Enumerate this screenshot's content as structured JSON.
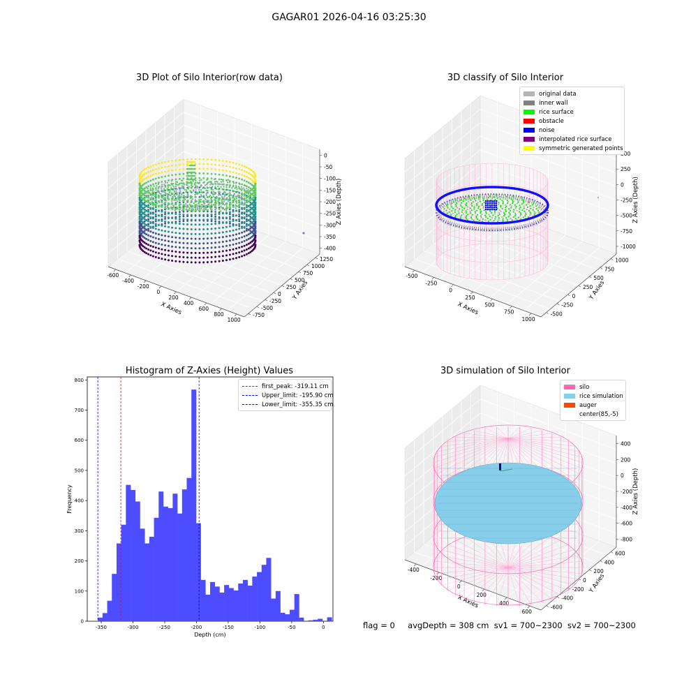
{
  "suptitle": "GAGAR01 2026-04-16 03:25:30",
  "panels": {
    "raw": {
      "title": "3D Plot of Silo Interior(row data)",
      "xlabel": "X Axies",
      "ylabel": "Y Axies",
      "zlabel": "Z Axies (Depth)",
      "xticks": [
        "-600",
        "-400",
        "-200",
        "0",
        "200",
        "400",
        "600",
        "800",
        "1000"
      ],
      "yticks": [
        "-750",
        "-500",
        "-250",
        "0",
        "250",
        "500",
        "750",
        "1000",
        "1250"
      ],
      "zticks": [
        "0",
        "-50",
        "-100",
        "-150",
        "-200",
        "-250",
        "-300",
        "-350",
        "-400"
      ]
    },
    "classify": {
      "title": "3D classify of Silo Interior",
      "xlabel": "X Axies",
      "ylabel": "Y Axies",
      "zlabel": "Z Axies (Depth)",
      "xticks": [
        "-500",
        "-250",
        "0",
        "250",
        "500",
        "750",
        "1000"
      ],
      "yticks": [
        "-500",
        "-250",
        "0",
        "250",
        "500",
        "750",
        "1000"
      ],
      "zticks": [
        "500",
        "250",
        "0",
        "-250",
        "-500",
        "-750",
        "-1000"
      ],
      "legend": [
        {
          "label": "original data",
          "color": "#b4b4b4"
        },
        {
          "label": "inner wall",
          "color": "#808080"
        },
        {
          "label": "rice surface",
          "color": "#00ff00"
        },
        {
          "label": "obstacle",
          "color": "#ff0000"
        },
        {
          "label": "noise",
          "color": "#0000ff"
        },
        {
          "label": "interpolated rice surface",
          "color": "#800080"
        },
        {
          "label": "symmetric generated points",
          "color": "#ffff00"
        }
      ]
    },
    "histogram": {
      "title": "Histogram of Z-Axies (Height) Values",
      "xlabel": "Depth (cm)",
      "ylabel": "Frequency",
      "legend": [
        {
          "label": "first_peak: -319.11 cm",
          "color": "#ff0000"
        },
        {
          "label": "Upper_limit: -195.90 cm",
          "color": "#0000ff"
        },
        {
          "label": "Lower_limit: -355.35 cm",
          "color": "#0000ff"
        }
      ]
    },
    "simulation": {
      "title": "3D simulation of Silo Interior",
      "xlabel": "X Axies",
      "ylabel": "Y Axies",
      "zlabel": "Z Axies (Depth)",
      "xticks": [
        "-400",
        "-200",
        "0",
        "200",
        "400",
        "600"
      ],
      "yticks": [
        "-600",
        "-400",
        "-200",
        "0",
        "200",
        "400",
        "600"
      ],
      "zticks": [
        "400",
        "200",
        "0",
        "-200",
        "-400",
        "-600",
        "-800"
      ],
      "legend": [
        {
          "label": "silo",
          "color": "#ff69b4"
        },
        {
          "label": "rice simulation",
          "color": "#87ceeb"
        },
        {
          "label": "auger",
          "color": "#ff4500"
        },
        {
          "label": "center(85,-5)",
          "color": "#ffffff"
        }
      ]
    }
  },
  "footer": {
    "flag": "flag = 0",
    "avg": "avgDepth = 308 cm",
    "sv1": "sv1 = 700~2300",
    "sv2": "sv2 = 700~2300"
  },
  "chart_data": [
    {
      "type": "scatter",
      "title": "3D Plot of Silo Interior(row data)",
      "xlabel": "X Axies",
      "ylabel": "Y Axies",
      "zlabel": "Z Axies (Depth)",
      "xlim": [
        -650,
        1050
      ],
      "ylim": [
        -800,
        1300
      ],
      "zlim": [
        -430,
        20
      ],
      "colormap": "viridis"
    },
    {
      "type": "scatter",
      "title": "3D classify of Silo Interior",
      "xlabel": "X Axies",
      "ylabel": "Y Axies",
      "zlabel": "Z Axies (Depth)",
      "xlim": [
        -600,
        1100
      ],
      "ylim": [
        -600,
        1100
      ],
      "zlim": [
        -1100,
        550
      ]
    },
    {
      "type": "bar",
      "title": "Histogram of Z-Axies (Height) Values",
      "xlabel": "Depth (cm)",
      "ylabel": "Frequency",
      "xlim": [
        -372,
        15
      ],
      "ylim": [
        0,
        810
      ],
      "xticks": [
        -350,
        -300,
        -250,
        -200,
        -150,
        -100,
        -50,
        0
      ],
      "yticks": [
        0,
        100,
        200,
        300,
        400,
        500,
        600,
        700,
        800
      ],
      "bin_start": -355.35,
      "bin_width": 7.37,
      "values": [
        12,
        27,
        68,
        157,
        258,
        320,
        452,
        435,
        397,
        307,
        258,
        280,
        343,
        430,
        380,
        375,
        423,
        357,
        437,
        475,
        768,
        325,
        137,
        88,
        130,
        115,
        95,
        120,
        110,
        102,
        125,
        137,
        118,
        148,
        163,
        187,
        210,
        75,
        100,
        28,
        23,
        38,
        90,
        12,
        0,
        3,
        5,
        8,
        0,
        13
      ],
      "vlines": [
        {
          "name": "first_peak: -319.11 cm",
          "x": -319.11,
          "color": "#ff0000"
        },
        {
          "name": "Upper_limit: -195.90 cm",
          "x": -195.9,
          "color": "#0000ff"
        },
        {
          "name": "Lower_limit: -355.35 cm",
          "x": -355.35,
          "color": "#0000ff"
        }
      ]
    },
    {
      "type": "scatter",
      "title": "3D simulation of Silo Interior",
      "xlabel": "X Axies",
      "ylabel": "Y Axies",
      "zlabel": "Z Axies (Depth)",
      "xlim": [
        -500,
        700
      ],
      "ylim": [
        -650,
        650
      ],
      "zlim": [
        -900,
        450
      ],
      "center": [
        85,
        -5
      ]
    }
  ]
}
